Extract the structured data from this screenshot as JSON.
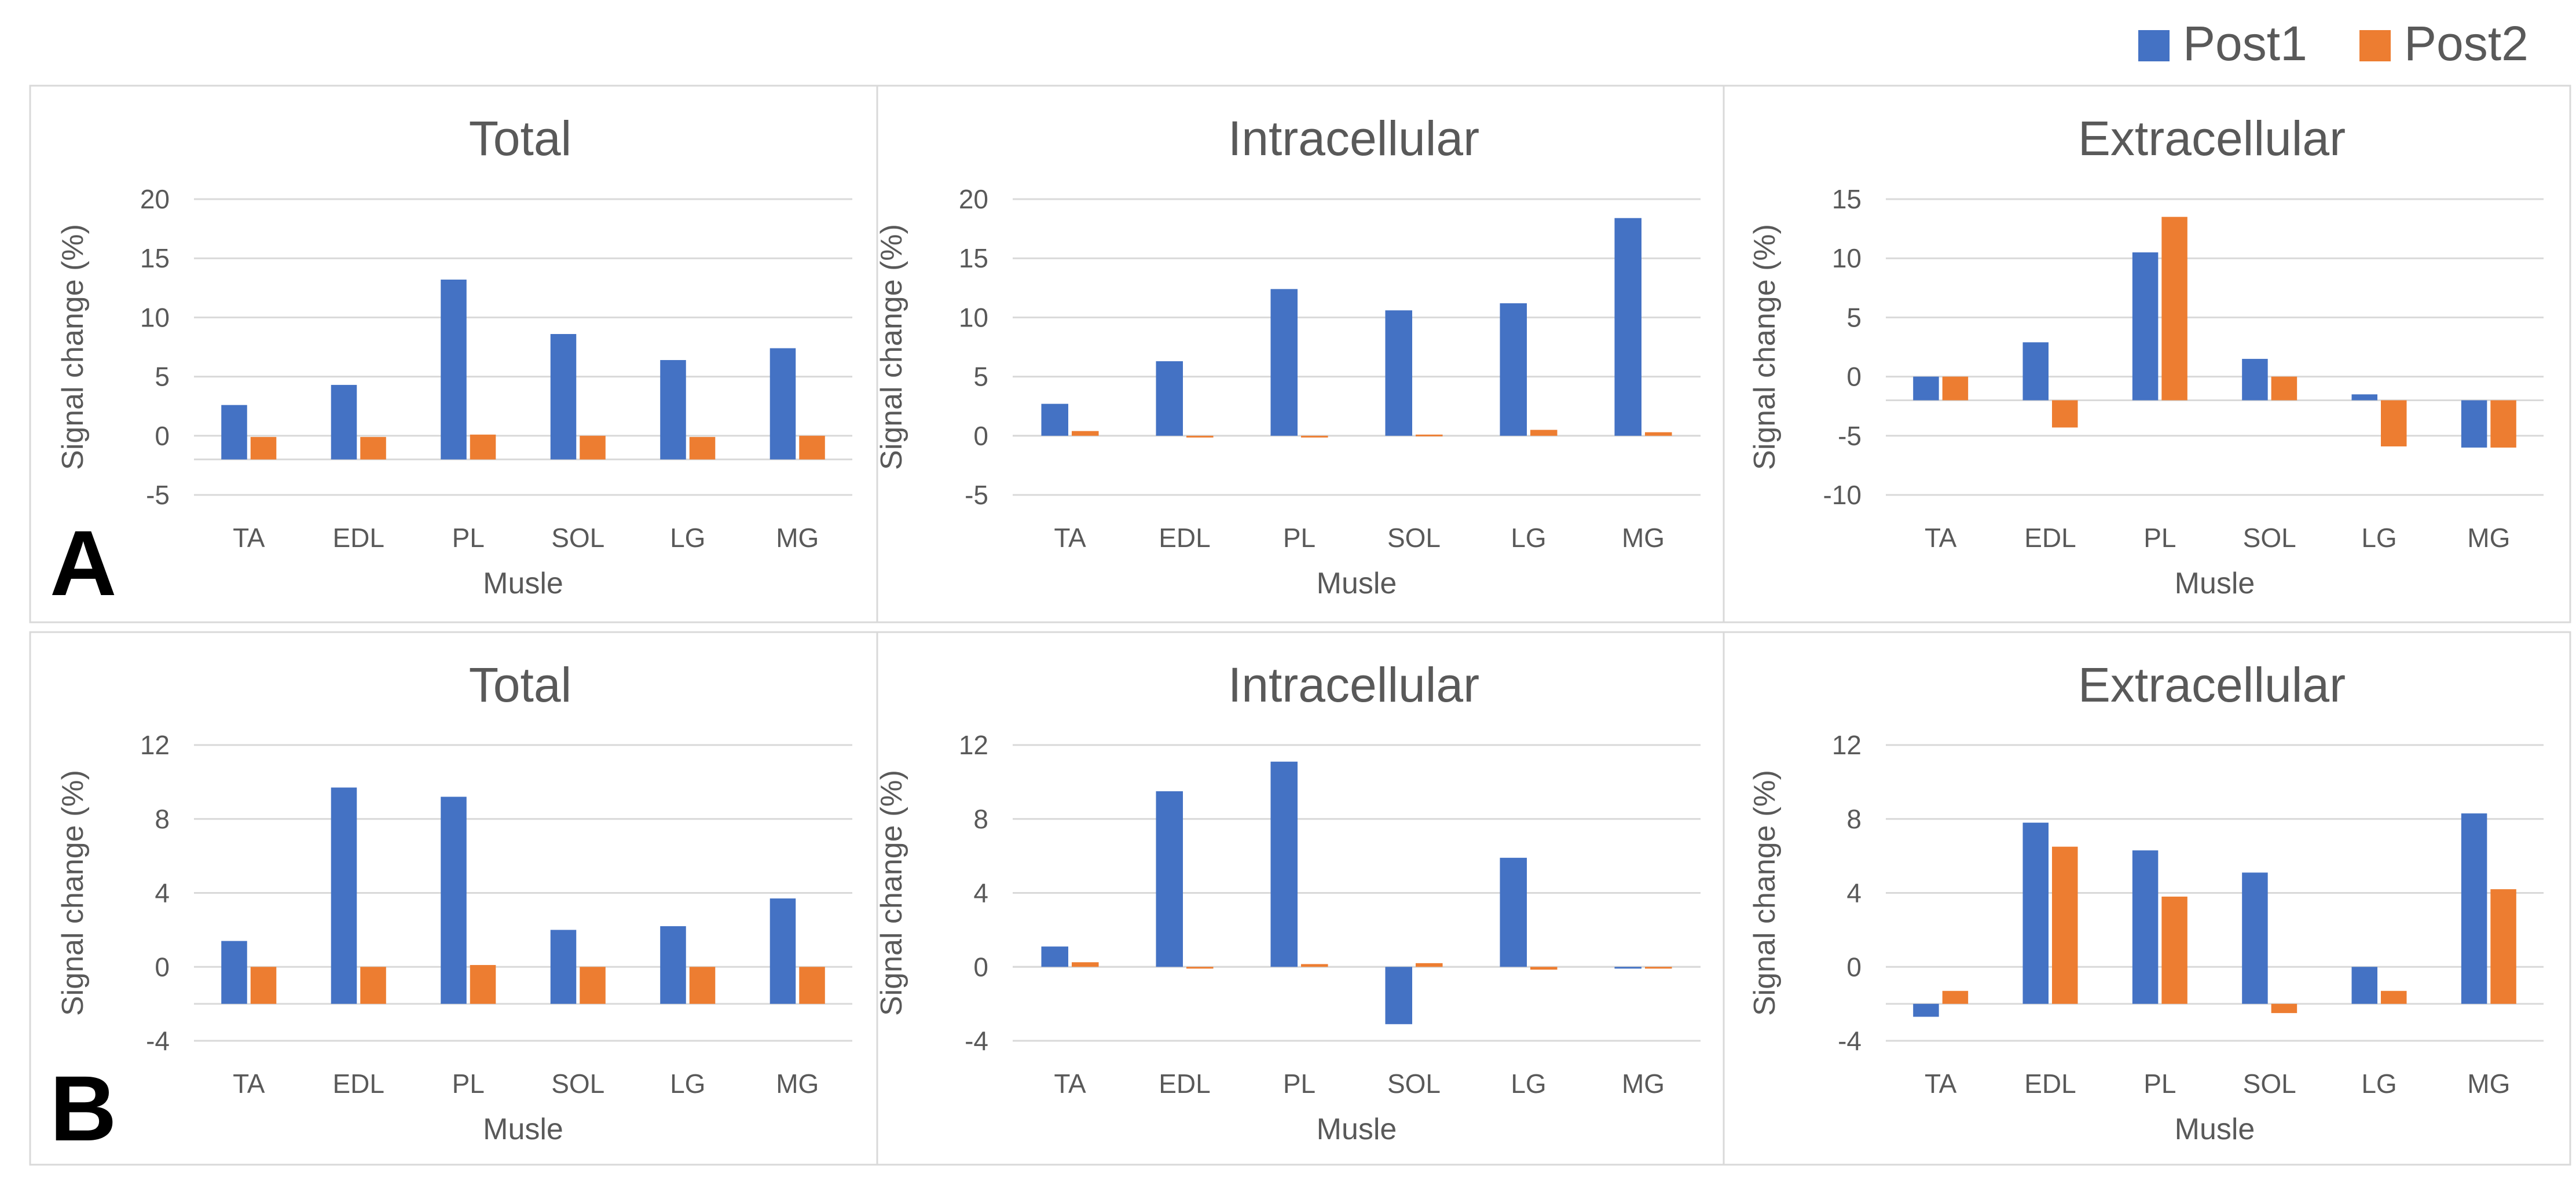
{
  "legend": {
    "post1_label": "Post1",
    "post2_label": "Post2",
    "post1_color": "#4472C4",
    "post2_color": "#ED7D31"
  },
  "panel_labels": [
    "A",
    "B"
  ],
  "chart_data": [
    {
      "type": "bar",
      "panel": "A",
      "title": "Total",
      "xlabel": "Musle",
      "ylabel": "Signal change (%)",
      "categories": [
        "TA",
        "EDL",
        "PL",
        "SOL",
        "LG",
        "MG"
      ],
      "ylim": [
        -5,
        20
      ],
      "yticks": [
        -5,
        0,
        5,
        10,
        15,
        20
      ],
      "baseline": -2,
      "series": [
        {
          "name": "Post1",
          "values": [
            2.6,
            4.3,
            13.2,
            8.6,
            6.4,
            7.4
          ]
        },
        {
          "name": "Post2",
          "values": [
            -0.1,
            -0.1,
            0.1,
            0.0,
            -0.1,
            0.0
          ]
        }
      ]
    },
    {
      "type": "bar",
      "panel": "A",
      "title": "Intracellular",
      "xlabel": "Musle",
      "ylabel": "Signal change (%)",
      "categories": [
        "TA",
        "EDL",
        "PL",
        "SOL",
        "LG",
        "MG"
      ],
      "ylim": [
        -5,
        20
      ],
      "yticks": [
        -5,
        0,
        5,
        10,
        15,
        20
      ],
      "baseline": 0,
      "series": [
        {
          "name": "Post1",
          "values": [
            2.7,
            6.3,
            12.4,
            10.6,
            11.2,
            18.4
          ]
        },
        {
          "name": "Post2",
          "values": [
            0.4,
            -0.1,
            0.0,
            0.1,
            0.5,
            0.3
          ]
        }
      ]
    },
    {
      "type": "bar",
      "panel": "A",
      "title": "Extracellular",
      "xlabel": "Musle",
      "ylabel": "Signal change (%)",
      "categories": [
        "TA",
        "EDL",
        "PL",
        "SOL",
        "LG",
        "MG"
      ],
      "ylim": [
        -10,
        15
      ],
      "yticks": [
        -10,
        -5,
        0,
        5,
        10,
        15
      ],
      "baseline": -2,
      "series": [
        {
          "name": "Post1",
          "values": [
            0.0,
            2.9,
            10.5,
            1.5,
            -1.5,
            -6.0
          ]
        },
        {
          "name": "Post2",
          "values": [
            0.0,
            -4.3,
            13.5,
            0.0,
            -5.9,
            -6.0
          ]
        }
      ]
    },
    {
      "type": "bar",
      "panel": "B",
      "title": "Total",
      "xlabel": "Musle",
      "ylabel": "Signal change (%)",
      "categories": [
        "TA",
        "EDL",
        "PL",
        "SOL",
        "LG",
        "MG"
      ],
      "ylim": [
        -4,
        12
      ],
      "yticks": [
        -4,
        0,
        4,
        8,
        12
      ],
      "baseline": -2,
      "series": [
        {
          "name": "Post1",
          "values": [
            1.4,
            9.7,
            9.2,
            2.0,
            2.2,
            3.7
          ]
        },
        {
          "name": "Post2",
          "values": [
            0.0,
            0.0,
            0.1,
            0.0,
            0.0,
            0.0
          ]
        }
      ]
    },
    {
      "type": "bar",
      "panel": "B",
      "title": "Intracellular",
      "xlabel": "Musle",
      "ylabel": "Signal change (%)",
      "categories": [
        "TA",
        "EDL",
        "PL",
        "SOL",
        "LG",
        "MG"
      ],
      "ylim": [
        -4,
        12
      ],
      "yticks": [
        -4,
        0,
        4,
        8,
        12
      ],
      "baseline": 0,
      "series": [
        {
          "name": "Post1",
          "values": [
            1.1,
            9.5,
            11.1,
            -3.1,
            5.9,
            0.0
          ]
        },
        {
          "name": "Post2",
          "values": [
            0.25,
            0.0,
            0.15,
            0.2,
            -0.15,
            -0.05
          ]
        }
      ]
    },
    {
      "type": "bar",
      "panel": "B",
      "title": "Extracellular",
      "xlabel": "Musle",
      "ylabel": "Signal change (%)",
      "categories": [
        "TA",
        "EDL",
        "PL",
        "SOL",
        "LG",
        "MG"
      ],
      "ylim": [
        -4,
        12
      ],
      "yticks": [
        -4,
        0,
        4,
        8,
        12
      ],
      "baseline": -2,
      "series": [
        {
          "name": "Post1",
          "values": [
            -2.7,
            7.8,
            6.3,
            5.1,
            0.0,
            8.3
          ]
        },
        {
          "name": "Post2",
          "values": [
            -1.3,
            6.5,
            3.8,
            -2.5,
            -1.3,
            4.2
          ]
        }
      ]
    }
  ]
}
